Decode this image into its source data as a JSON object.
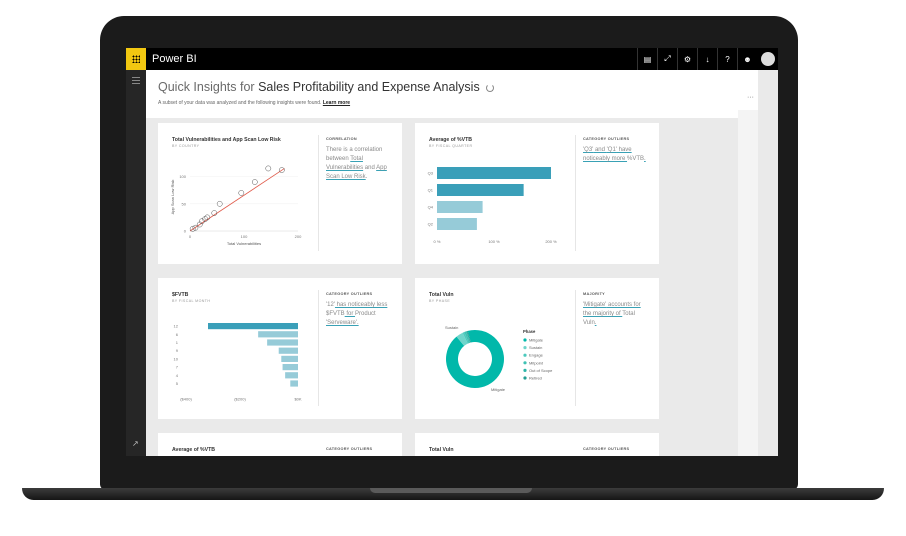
{
  "app": {
    "title": "Power BI"
  },
  "topbar": {
    "icons": [
      "comment-icon",
      "expand-icon",
      "settings-icon",
      "download-icon",
      "help-icon",
      "smiley-icon",
      "avatar"
    ],
    "glyphs": [
      "▤",
      "⤢",
      "⚙",
      "↓",
      "?",
      "☻"
    ]
  },
  "header": {
    "title_prefix": "Quick Insights for",
    "title_dataset": "Sales Profitability and Expense Analysis",
    "subtitle": "A subset of your data was analyzed and the following insights were found.",
    "learn_more": "Learn more",
    "more": "···"
  },
  "cards": [
    {
      "title": "Total Vulnerabilities and App Scan Low Risk",
      "subtitle": "BY COUNTRY",
      "category": "CORRELATION",
      "desc_parts": [
        "There is a correlation between ",
        "Total Vulnerabilities",
        " and ",
        "App Scan Low Risk",
        "."
      ],
      "chart_data": {
        "type": "scatter",
        "xlabel": "Total Vulnerabilities",
        "ylabel": "App Scan Low Risk",
        "x_ticks": [
          "0",
          "100",
          "200"
        ],
        "y_ticks": [
          "0",
          "50",
          "100"
        ],
        "xlim": [
          0,
          200
        ],
        "ylim": [
          0,
          125
        ],
        "points": [
          [
            5,
            4
          ],
          [
            10,
            6
          ],
          [
            18,
            12
          ],
          [
            22,
            18
          ],
          [
            28,
            22
          ],
          [
            32,
            25
          ],
          [
            45,
            33
          ],
          [
            55,
            50
          ],
          [
            95,
            70
          ],
          [
            120,
            90
          ],
          [
            145,
            115
          ],
          [
            170,
            112
          ]
        ],
        "trendline": [
          [
            0,
            0
          ],
          [
            175,
            115
          ]
        ]
      }
    },
    {
      "title": "Average of %VTB",
      "subtitle": "BY FISCAL QUARTER",
      "category": "CATEGORY OUTLIERS",
      "desc_parts": [
        "'Q3'",
        " and ",
        "'Q1'",
        " have noticeably more ",
        "%VTB",
        "."
      ],
      "chart_data": {
        "type": "bar",
        "orientation": "horizontal",
        "categories": [
          "Q3",
          "Q1",
          "Q4",
          "Q2"
        ],
        "values": [
          200,
          152,
          80,
          70
        ],
        "x_ticks": [
          "0 %",
          "100 %",
          "200 %"
        ],
        "xlim": [
          0,
          200
        ],
        "highlight": [
          true,
          true,
          false,
          false
        ]
      }
    },
    {
      "title": "$FVTB",
      "subtitle": "BY FISCAL MONTH",
      "category": "CATEGORY OUTLIERS",
      "desc_parts": [
        "'12'",
        " has noticeably less ",
        "$FVTB",
        " for ",
        "Product",
        " 'Serveware'."
      ],
      "chart_data": {
        "type": "bar",
        "orientation": "horizontal",
        "categories": [
          "12",
          "6",
          "1",
          "9",
          "10",
          "7",
          "4",
          "5"
        ],
        "values": [
          -700,
          -310,
          -240,
          -150,
          -130,
          -120,
          -100,
          -60
        ],
        "x_ticks": [
          "($400)",
          "($200)",
          "$0K"
        ],
        "xlim": [
          -700,
          0
        ],
        "highlight": [
          true,
          false,
          false,
          false,
          false,
          false,
          false,
          false
        ]
      }
    },
    {
      "title": "Total Vuln",
      "subtitle": "BY PHASE",
      "category": "MAJORITY",
      "desc_parts": [
        "'Mitigate'",
        " accounts for the majority of ",
        "Total Vuln",
        "."
      ],
      "chart_data": {
        "type": "pie",
        "donut": true,
        "legend_title": "Phase",
        "slices": [
          {
            "name": "Mitigate",
            "value": 93,
            "color": "#01b8aa"
          },
          {
            "name": "Sustain",
            "value": 4,
            "color": "#6fd5cb"
          },
          {
            "name": "Engage",
            "value": 1,
            "color": "#4cc9bd"
          },
          {
            "name": "Mitpoint",
            "value": 1,
            "color": "#3ec1b3"
          },
          {
            "name": "Out of Scope",
            "value": 0.5,
            "color": "#2eb5a8"
          },
          {
            "name": "Retired",
            "value": 0.5,
            "color": "#229e93"
          }
        ],
        "slice_labels": [
          "Sustain",
          "Mitigate"
        ]
      }
    },
    {
      "title": "Average of %VTB",
      "category": "CATEGORY OUTLIERS"
    },
    {
      "title": "Total Vuln",
      "category": "CATEGORY OUTLIERS"
    }
  ]
}
